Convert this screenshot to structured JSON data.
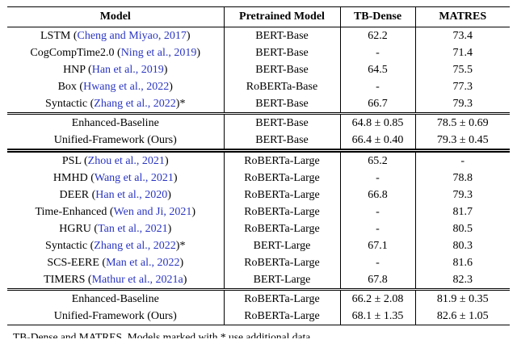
{
  "table": {
    "citation_color": "#2a35c2",
    "headers": [
      "Model",
      "Pretrained Model",
      "TB-Dense",
      "MATRES"
    ],
    "sections": [
      {
        "name": "baselines-base",
        "heavy": false,
        "rows": [
          {
            "model": "LSTM",
            "cite": "Cheng and Miyao, 2017",
            "star": "",
            "pretrained": "BERT-Base",
            "tb_dense": "62.2",
            "matres": "73.4"
          },
          {
            "model": "CogCompTime2.0",
            "cite": "Ning et al., 2019",
            "star": "",
            "pretrained": "BERT-Base",
            "tb_dense": "-",
            "matres": "71.4"
          },
          {
            "model": "HNP",
            "cite": "Han et al., 2019",
            "star": "",
            "pretrained": "BERT-Base",
            "tb_dense": "64.5",
            "matres": "75.5"
          },
          {
            "model": "Box",
            "cite": "Hwang et al., 2022",
            "star": "",
            "pretrained": "RoBERTa-Base",
            "tb_dense": "-",
            "matres": "77.3"
          },
          {
            "model": "Syntactic",
            "cite": "Zhang et al., 2022",
            "star": "*",
            "pretrained": "BERT-Base",
            "tb_dense": "66.7",
            "matres": "79.3"
          }
        ]
      },
      {
        "name": "ours-base",
        "heavy": false,
        "rows": [
          {
            "model": "Enhanced-Baseline",
            "cite": "",
            "star": "",
            "pretrained": "BERT-Base",
            "tb_dense": "64.8 ± 0.85",
            "matres": "78.5 ± 0.69"
          },
          {
            "model": "Unified-Framework (Ours)",
            "cite": "",
            "star": "",
            "pretrained": "BERT-Base",
            "tb_dense": "66.4 ± 0.40",
            "matres": "79.3 ± 0.45"
          }
        ]
      },
      {
        "name": "baselines-large",
        "heavy": true,
        "rows": [
          {
            "model": "PSL",
            "cite": "Zhou et al., 2021",
            "star": "",
            "pretrained": "RoBERTa-Large",
            "tb_dense": "65.2",
            "matres": "-"
          },
          {
            "model": "HMHD",
            "cite": "Wang et al., 2021",
            "star": "",
            "pretrained": "RoBERTa-Large",
            "tb_dense": "-",
            "matres": "78.8"
          },
          {
            "model": "DEER",
            "cite": "Han et al., 2020",
            "star": "",
            "pretrained": "RoBERTa-Large",
            "tb_dense": "66.8",
            "matres": "79.3"
          },
          {
            "model": "Time-Enhanced",
            "cite": "Wen and Ji, 2021",
            "star": "",
            "pretrained": "RoBERTa-Large",
            "tb_dense": "-",
            "matres": "81.7"
          },
          {
            "model": "HGRU",
            "cite": "Tan et al., 2021",
            "star": "",
            "pretrained": "RoBERTa-Large",
            "tb_dense": "-",
            "matres": "80.5"
          },
          {
            "model": "Syntactic",
            "cite": "Zhang et al., 2022",
            "star": "*",
            "pretrained": "BERT-Large",
            "tb_dense": "67.1",
            "matres": "80.3"
          },
          {
            "model": "SCS-EERE",
            "cite": "Man et al., 2022",
            "star": "",
            "pretrained": "RoBERTa-Large",
            "tb_dense": "-",
            "matres": "81.6"
          },
          {
            "model": "TIMERS",
            "cite": "Mathur et al., 2021a",
            "star": "",
            "pretrained": "BERT-Large",
            "tb_dense": "67.8",
            "matres": "82.3"
          }
        ]
      },
      {
        "name": "ours-large",
        "heavy": false,
        "rows": [
          {
            "model": "Enhanced-Baseline",
            "cite": "",
            "star": "",
            "pretrained": "RoBERTa-Large",
            "tb_dense": "66.2 ± 2.08",
            "matres": "81.9 ± 0.35"
          },
          {
            "model": "Unified-Framework (Ours)",
            "cite": "",
            "star": "",
            "pretrained": "RoBERTa-Large",
            "tb_dense": "68.1 ± 1.35",
            "matres": "82.6 ± 1.05"
          }
        ]
      }
    ]
  },
  "caption_fragment": "TB-Dense and MATRES. Models marked with * use additional data."
}
